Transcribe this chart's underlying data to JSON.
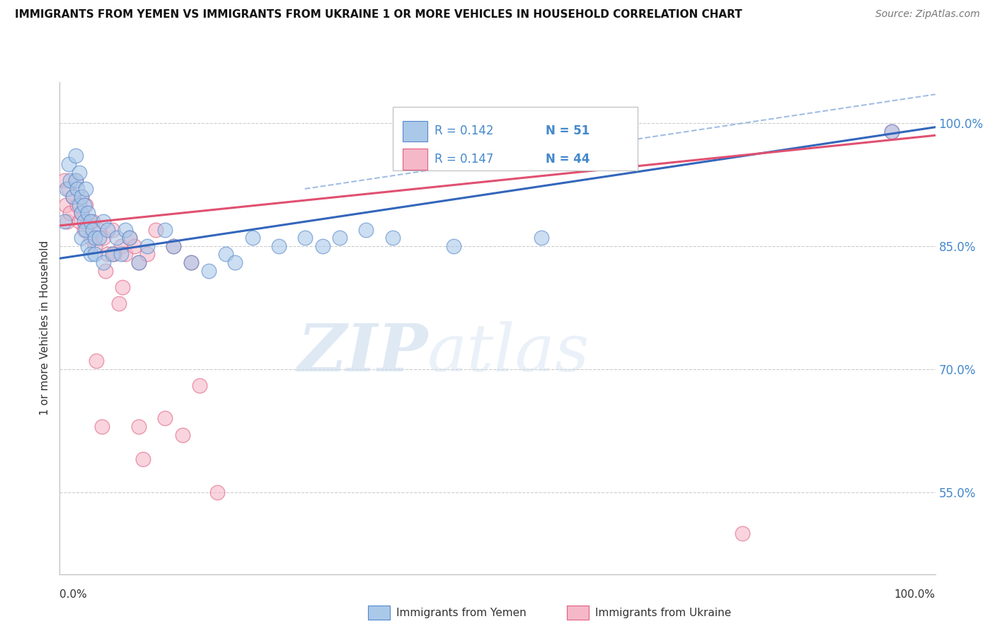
{
  "title": "IMMIGRANTS FROM YEMEN VS IMMIGRANTS FROM UKRAINE 1 OR MORE VEHICLES IN HOUSEHOLD CORRELATION CHART",
  "source": "Source: ZipAtlas.com",
  "ylabel": "1 or more Vehicles in Household",
  "xlim": [
    0,
    1.0
  ],
  "ylim": [
    0.45,
    1.05
  ],
  "ytick_vals": [
    0.55,
    0.7,
    0.85,
    1.0
  ],
  "ytick_labels": [
    "55.0%",
    "70.0%",
    "85.0%",
    "100.0%"
  ],
  "legend_R_blue": "R = 0.142",
  "legend_N_blue": "N = 51",
  "legend_R_pink": "R = 0.147",
  "legend_N_pink": "N = 44",
  "color_blue_fill": "#aac8e8",
  "color_blue_edge": "#5588cc",
  "color_pink_fill": "#f5b8c8",
  "color_pink_edge": "#e06080",
  "color_blue_line": "#3366bb",
  "color_pink_line": "#e05070",
  "color_dash_line": "#8aaedd",
  "blue_x": [
    0.005,
    0.008,
    0.01,
    0.012,
    0.015,
    0.018,
    0.018,
    0.02,
    0.022,
    0.022,
    0.025,
    0.025,
    0.025,
    0.028,
    0.028,
    0.03,
    0.03,
    0.032,
    0.032,
    0.035,
    0.035,
    0.038,
    0.04,
    0.04,
    0.045,
    0.05,
    0.05,
    0.055,
    0.06,
    0.065,
    0.07,
    0.075,
    0.08,
    0.09,
    0.1,
    0.12,
    0.13,
    0.15,
    0.17,
    0.19,
    0.2,
    0.22,
    0.25,
    0.28,
    0.3,
    0.32,
    0.35,
    0.38,
    0.45,
    0.55,
    0.95
  ],
  "blue_y": [
    0.88,
    0.92,
    0.95,
    0.93,
    0.91,
    0.96,
    0.93,
    0.92,
    0.9,
    0.94,
    0.91,
    0.89,
    0.86,
    0.9,
    0.88,
    0.87,
    0.92,
    0.89,
    0.85,
    0.88,
    0.84,
    0.87,
    0.86,
    0.84,
    0.86,
    0.88,
    0.83,
    0.87,
    0.84,
    0.86,
    0.84,
    0.87,
    0.86,
    0.83,
    0.85,
    0.87,
    0.85,
    0.83,
    0.82,
    0.84,
    0.83,
    0.86,
    0.85,
    0.86,
    0.85,
    0.86,
    0.87,
    0.86,
    0.85,
    0.86,
    0.99
  ],
  "pink_x": [
    0.005,
    0.007,
    0.009,
    0.01,
    0.012,
    0.015,
    0.018,
    0.02,
    0.022,
    0.025,
    0.025,
    0.028,
    0.03,
    0.032,
    0.035,
    0.038,
    0.04,
    0.045,
    0.05,
    0.055,
    0.06,
    0.07,
    0.075,
    0.08,
    0.085,
    0.09,
    0.1,
    0.11,
    0.13,
    0.15,
    0.16,
    0.18,
    0.12,
    0.14,
    0.09,
    0.095,
    0.042,
    0.048,
    0.052,
    0.062,
    0.068,
    0.072,
    0.78,
    0.95
  ],
  "pink_y": [
    0.93,
    0.9,
    0.88,
    0.92,
    0.89,
    0.91,
    0.93,
    0.9,
    0.88,
    0.91,
    0.89,
    0.87,
    0.9,
    0.88,
    0.86,
    0.88,
    0.85,
    0.87,
    0.86,
    0.84,
    0.87,
    0.85,
    0.84,
    0.86,
    0.85,
    0.83,
    0.84,
    0.87,
    0.85,
    0.83,
    0.68,
    0.55,
    0.64,
    0.62,
    0.63,
    0.59,
    0.71,
    0.63,
    0.82,
    0.84,
    0.78,
    0.8,
    0.5,
    0.99
  ],
  "background_color": "#ffffff",
  "grid_color": "#cccccc",
  "watermark_text": "ZIP",
  "watermark_text2": "atlas"
}
